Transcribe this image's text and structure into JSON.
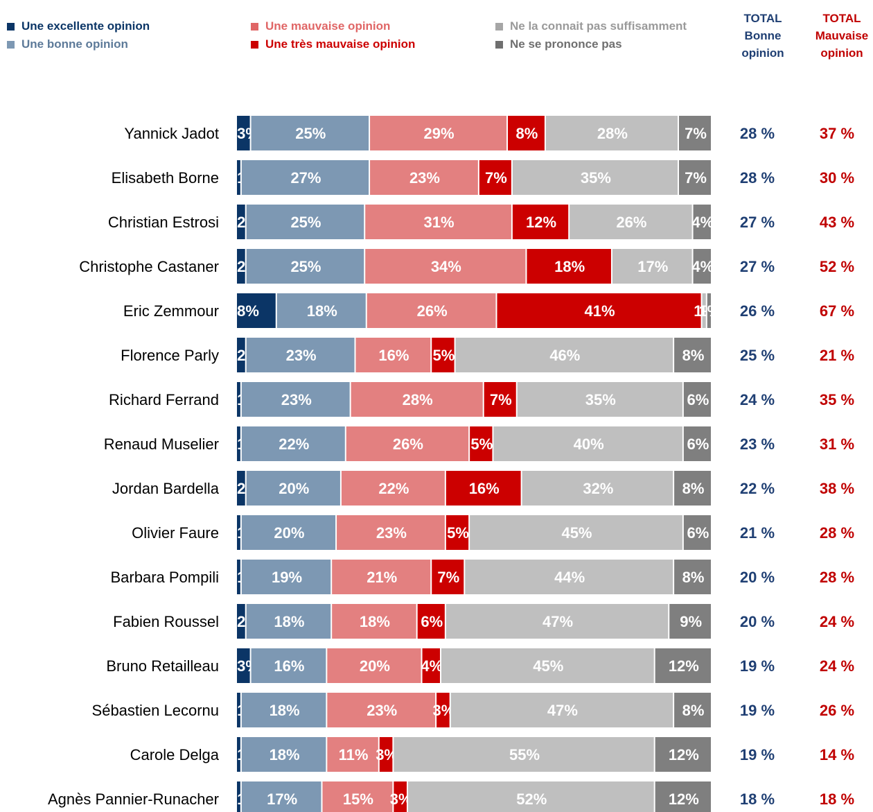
{
  "legend": {
    "items": [
      {
        "label": "Une excellente opinion",
        "color": "#0b3566"
      },
      {
        "label": "Une bonne opinion",
        "color": "#7d98b3"
      },
      {
        "label": "Une mauvaise opinion",
        "color": "#e38080"
      },
      {
        "label": "Une très mauvaise opinion",
        "color": "#cc0000"
      },
      {
        "label": "Ne la connait pas suffisamment",
        "color": "#bfbfbf"
      },
      {
        "label": "Ne se prononce pas",
        "color": "#7f7f7f"
      }
    ]
  },
  "totals_header": {
    "bonne": {
      "line1": "TOTAL",
      "line2": "Bonne",
      "line3": "opinion",
      "color": "#1f3f73"
    },
    "mauvaise": {
      "line1": "TOTAL",
      "line2": "Mauvaise",
      "line3": "opinion",
      "color": "#c00000"
    }
  },
  "chart_data": {
    "type": "bar",
    "orientation": "horizontal",
    "stacked": true,
    "value_unit": "%",
    "legend_position": "top",
    "categories": [
      "Yannick Jadot",
      "Elisabeth Borne",
      "Christian Estrosi",
      "Christophe Castaner",
      "Eric Zemmour",
      "Florence Parly",
      "Richard Ferrand",
      "Renaud Muselier",
      "Jordan Bardella",
      "Olivier Faure",
      "Barbara Pompili",
      "Fabien Roussel",
      "Bruno Retailleau",
      "Sébastien Lecornu",
      "Carole Delga",
      "Agnès Pannier-Runacher"
    ],
    "series": [
      {
        "name": "Une excellente opinion",
        "color": "#0b3566",
        "values": [
          3,
          1,
          2,
          2,
          8,
          2,
          1,
          1,
          2,
          1,
          1,
          2,
          3,
          1,
          1,
          1
        ]
      },
      {
        "name": "Une bonne opinion",
        "color": "#7d98b3",
        "values": [
          25,
          27,
          25,
          25,
          18,
          23,
          23,
          22,
          20,
          20,
          19,
          18,
          16,
          18,
          18,
          17
        ]
      },
      {
        "name": "Une mauvaise opinion",
        "color": "#e38080",
        "values": [
          29,
          23,
          31,
          34,
          26,
          16,
          28,
          26,
          22,
          23,
          21,
          18,
          20,
          23,
          11,
          15
        ]
      },
      {
        "name": "Une très mauvaise opinion",
        "color": "#cc0000",
        "values": [
          8,
          7,
          12,
          18,
          41,
          5,
          7,
          5,
          16,
          5,
          7,
          6,
          4,
          3,
          3,
          3
        ]
      },
      {
        "name": "Ne la connait pas suffisamment",
        "color": "#bfbfbf",
        "values": [
          28,
          35,
          26,
          17,
          1,
          46,
          35,
          40,
          32,
          45,
          44,
          47,
          45,
          47,
          55,
          52
        ]
      },
      {
        "name": "Ne se prononce pas",
        "color": "#7f7f7f",
        "values": [
          7,
          7,
          4,
          4,
          1,
          8,
          6,
          6,
          8,
          6,
          8,
          9,
          12,
          8,
          12,
          12
        ]
      }
    ],
    "total_bonne": [
      28,
      28,
      27,
      27,
      26,
      25,
      24,
      23,
      22,
      21,
      20,
      20,
      19,
      19,
      19,
      18
    ],
    "total_mauvaise": [
      37,
      30,
      43,
      52,
      67,
      21,
      35,
      31,
      38,
      28,
      28,
      24,
      24,
      26,
      14,
      18
    ],
    "xlim": [
      0,
      100
    ]
  }
}
